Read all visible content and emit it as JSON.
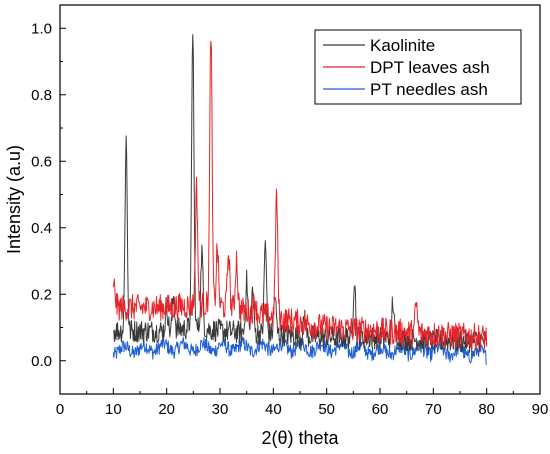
{
  "chart_data": {
    "type": "line",
    "xlabel": "2(θ) theta",
    "ylabel": "Intensity (a.u)",
    "xlim": [
      0,
      90
    ],
    "ylim": [
      -0.1,
      1.07
    ],
    "xticks": [
      0,
      10,
      20,
      30,
      40,
      50,
      60,
      70,
      80,
      90
    ],
    "yticks": [
      0.0,
      0.2,
      0.4,
      0.6,
      0.8,
      1.0
    ],
    "xtick_labels": [
      "0",
      "10",
      "20",
      "30",
      "40",
      "50",
      "60",
      "70",
      "80",
      "90"
    ],
    "ytick_labels": [
      "0.0",
      "0.2",
      "0.4",
      "0.6",
      "0.8",
      "1.0"
    ],
    "grid": false,
    "legend_position": "top-right",
    "series": [
      {
        "name": "Kaolinite",
        "color": "#3a3a3a",
        "peaks": [
          [
            12.4,
            0.67
          ],
          [
            20.0,
            0.17
          ],
          [
            21.3,
            0.19
          ],
          [
            24.9,
            1.0
          ],
          [
            26.6,
            0.33
          ],
          [
            35.0,
            0.24
          ],
          [
            36.1,
            0.21
          ],
          [
            38.5,
            0.36
          ],
          [
            40.3,
            0.2
          ],
          [
            45.9,
            0.14
          ],
          [
            55.2,
            0.25
          ],
          [
            62.4,
            0.18
          ]
        ],
        "baseline": [
          [
            10,
            0.09
          ],
          [
            20,
            0.09
          ],
          [
            25,
            0.1
          ],
          [
            30,
            0.09
          ],
          [
            40,
            0.08
          ],
          [
            50,
            0.07
          ],
          [
            60,
            0.07
          ],
          [
            70,
            0.06
          ],
          [
            80,
            0.06
          ]
        ]
      },
      {
        "name": "DPT leaves ash",
        "color": "#e8242b",
        "peaks": [
          [
            10.2,
            0.22
          ],
          [
            25.6,
            0.52
          ],
          [
            28.3,
            1.0
          ],
          [
            29.5,
            0.34
          ],
          [
            31.6,
            0.33
          ],
          [
            33.1,
            0.31
          ],
          [
            40.6,
            0.5
          ],
          [
            36.5,
            0.19
          ],
          [
            66.8,
            0.17
          ]
        ],
        "baseline": [
          [
            10,
            0.16
          ],
          [
            20,
            0.16
          ],
          [
            27,
            0.17
          ],
          [
            32,
            0.16
          ],
          [
            40,
            0.13
          ],
          [
            50,
            0.1
          ],
          [
            60,
            0.09
          ],
          [
            70,
            0.08
          ],
          [
            80,
            0.07
          ]
        ]
      },
      {
        "name": "PT needles ash",
        "color": "#1f5fd6",
        "peaks": [],
        "baseline": [
          [
            10,
            0.03
          ],
          [
            20,
            0.04
          ],
          [
            30,
            0.04
          ],
          [
            40,
            0.04
          ],
          [
            50,
            0.04
          ],
          [
            60,
            0.03
          ],
          [
            70,
            0.03
          ],
          [
            80,
            0.02
          ]
        ]
      }
    ]
  }
}
